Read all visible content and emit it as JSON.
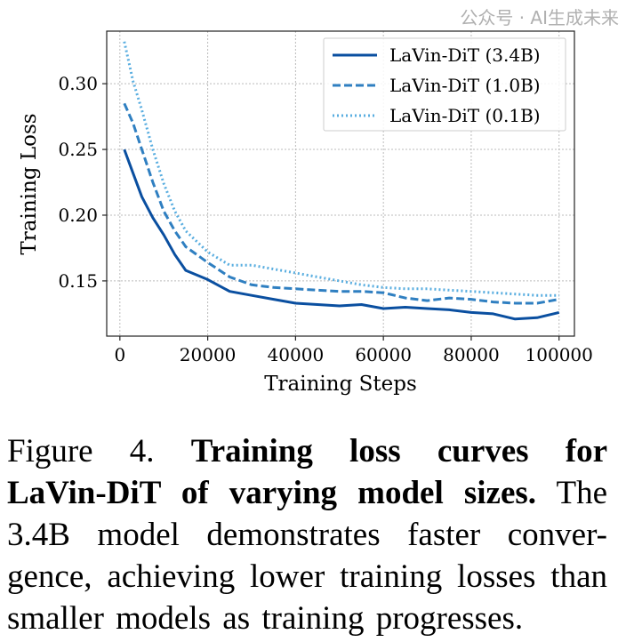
{
  "chart_data": {
    "type": "line",
    "title": "",
    "xlabel": "Training Steps",
    "ylabel": "Training Loss",
    "xlim": [
      -3000,
      103500
    ],
    "ylim": [
      0.108,
      0.34
    ],
    "xticks": [
      0,
      20000,
      40000,
      60000,
      80000,
      100000
    ],
    "xtick_labels": [
      "0",
      "20000",
      "40000",
      "60000",
      "80000",
      "100000"
    ],
    "yticks": [
      0.15,
      0.2,
      0.25,
      0.3
    ],
    "ytick_labels": [
      "0.15",
      "0.20",
      "0.25",
      "0.30"
    ],
    "grid": true,
    "legend_position": "top-right",
    "x": [
      1000,
      3000,
      5000,
      7500,
      10000,
      12500,
      15000,
      20000,
      25000,
      30000,
      35000,
      40000,
      45000,
      50000,
      55000,
      60000,
      65000,
      70000,
      75000,
      80000,
      85000,
      90000,
      95000,
      100000
    ],
    "series": [
      {
        "name": "LaVin-DiT (3.4B)",
        "color": "#0a4fa0",
        "style": "solid",
        "values": [
          0.25,
          0.232,
          0.214,
          0.198,
          0.185,
          0.17,
          0.158,
          0.151,
          0.142,
          0.139,
          0.136,
          0.133,
          0.132,
          0.131,
          0.132,
          0.129,
          0.13,
          0.129,
          0.128,
          0.126,
          0.125,
          0.121,
          0.122,
          0.126
        ]
      },
      {
        "name": "LaVin-DiT (1.0B)",
        "color": "#2f7fc1",
        "style": "dashed",
        "values": [
          0.285,
          0.27,
          0.25,
          0.225,
          0.203,
          0.188,
          0.176,
          0.164,
          0.153,
          0.147,
          0.145,
          0.144,
          0.143,
          0.142,
          0.142,
          0.141,
          0.137,
          0.135,
          0.137,
          0.136,
          0.134,
          0.133,
          0.133,
          0.136
        ]
      },
      {
        "name": "LaVin-DiT (0.1B)",
        "color": "#5aaee0",
        "style": "dotted",
        "values": [
          0.332,
          0.302,
          0.28,
          0.25,
          0.224,
          0.203,
          0.188,
          0.172,
          0.162,
          0.162,
          0.159,
          0.156,
          0.153,
          0.15,
          0.147,
          0.145,
          0.144,
          0.144,
          0.143,
          0.142,
          0.141,
          0.14,
          0.139,
          0.139
        ]
      }
    ]
  },
  "caption": {
    "line1_label": "Figure 4.",
    "line1_bold": "Training loss curves for",
    "line2_bold": "LaVin-DiT of varying model sizes.",
    "line2_rest": "The",
    "line3": "3.4B model demonstrates faster conver-",
    "line4": "gence, achieving lower training losses than",
    "line5": "smaller models as training progresses."
  },
  "watermark": "公众号 · AI生成未来"
}
